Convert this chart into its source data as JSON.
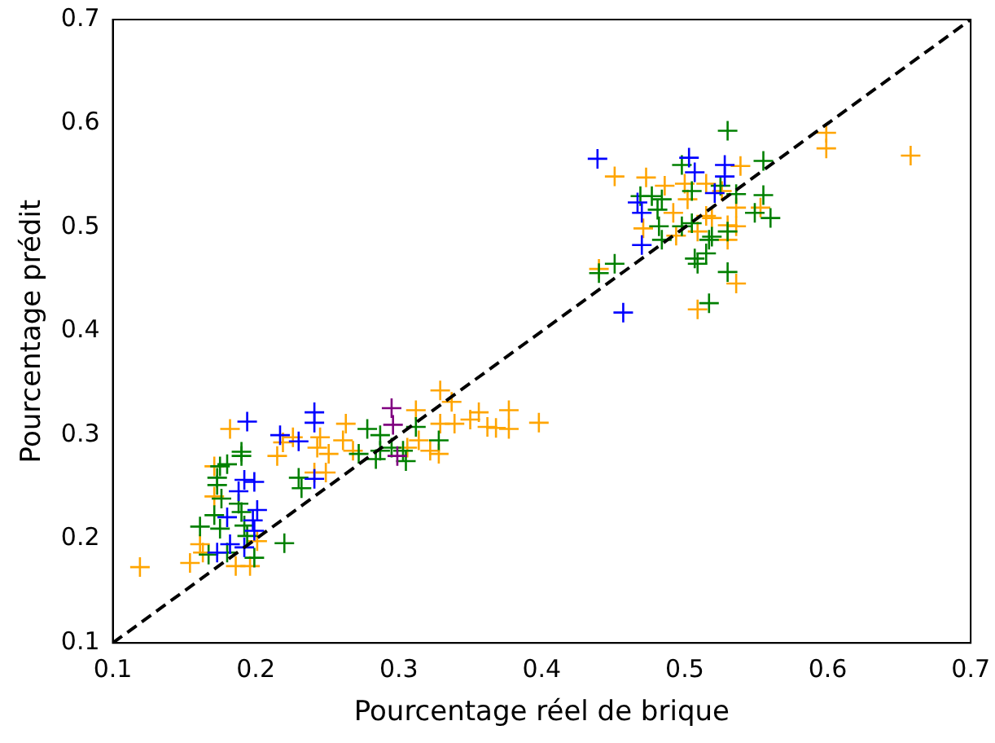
{
  "chart_data": {
    "type": "scatter",
    "xlabel": "Pourcentage réel de brique",
    "ylabel": "Pourcentage prédit",
    "xlim": [
      0.1,
      0.7
    ],
    "ylim": [
      0.1,
      0.7
    ],
    "xticks": [
      0.1,
      0.2,
      0.3,
      0.4,
      0.5,
      0.6,
      0.7
    ],
    "yticks": [
      0.1,
      0.2,
      0.3,
      0.4,
      0.5,
      0.6,
      0.7
    ],
    "grid": false,
    "legend": false,
    "marker": "cross",
    "series": [
      {
        "color": "#ffa500",
        "x": [
          0.119,
          0.154,
          0.161,
          0.171,
          0.171,
          0.182,
          0.196,
          0.186,
          0.215,
          0.219,
          0.226,
          0.245,
          0.243,
          0.251,
          0.241,
          0.249,
          0.263,
          0.261,
          0.268,
          0.329,
          0.337,
          0.312,
          0.314,
          0.306,
          0.322,
          0.329,
          0.339,
          0.35,
          0.356,
          0.362,
          0.368,
          0.377,
          0.377,
          0.398,
          0.328,
          0.201,
          0.163,
          0.44,
          0.451,
          0.473,
          0.486,
          0.5,
          0.515,
          0.539,
          0.599,
          0.599,
          0.658,
          0.471,
          0.494,
          0.509,
          0.519,
          0.53,
          0.536,
          0.536,
          0.553,
          0.53,
          0.536,
          0.509,
          0.502,
          0.492,
          0.526,
          0.515
        ],
        "values": [
          0.173,
          0.177,
          0.195,
          0.27,
          0.241,
          0.306,
          0.174,
          0.174,
          0.28,
          0.293,
          0.298,
          0.298,
          0.288,
          0.282,
          0.264,
          0.264,
          0.311,
          0.295,
          0.285,
          0.343,
          0.332,
          0.324,
          0.295,
          0.288,
          0.285,
          0.311,
          0.311,
          0.315,
          0.322,
          0.308,
          0.307,
          0.324,
          0.306,
          0.312,
          0.282,
          0.198,
          0.187,
          0.46,
          0.549,
          0.548,
          0.54,
          0.542,
          0.542,
          0.559,
          0.591,
          0.576,
          0.569,
          0.499,
          0.492,
          0.496,
          0.509,
          0.502,
          0.501,
          0.519,
          0.519,
          0.488,
          0.446,
          0.421,
          0.527,
          0.514,
          0.535,
          0.511
        ]
      },
      {
        "color": "#008000",
        "x": [
          0.19,
          0.18,
          0.175,
          0.173,
          0.173,
          0.176,
          0.171,
          0.161,
          0.175,
          0.188,
          0.19,
          0.192,
          0.194,
          0.167,
          0.18,
          0.199,
          0.22,
          0.23,
          0.232,
          0.278,
          0.287,
          0.295,
          0.303,
          0.272,
          0.284,
          0.305,
          0.328,
          0.312,
          0.287,
          0.19,
          0.53,
          0.498,
          0.555,
          0.469,
          0.477,
          0.484,
          0.481,
          0.505,
          0.525,
          0.536,
          0.555,
          0.549,
          0.56,
          0.482,
          0.498,
          0.505,
          0.519,
          0.53,
          0.517,
          0.507,
          0.509,
          0.515,
          0.53,
          0.44,
          0.451,
          0.517,
          0.484
        ],
        "values": [
          0.284,
          0.272,
          0.27,
          0.259,
          0.252,
          0.239,
          0.223,
          0.212,
          0.21,
          0.234,
          0.226,
          0.213,
          0.203,
          0.185,
          0.187,
          0.182,
          0.196,
          0.259,
          0.249,
          0.306,
          0.3,
          0.288,
          0.285,
          0.282,
          0.277,
          0.275,
          0.295,
          0.308,
          0.285,
          0.28,
          0.593,
          0.56,
          0.564,
          0.53,
          0.53,
          0.527,
          0.517,
          0.535,
          0.54,
          0.532,
          0.531,
          0.514,
          0.509,
          0.501,
          0.501,
          0.504,
          0.491,
          0.496,
          0.488,
          0.47,
          0.465,
          0.475,
          0.457,
          0.456,
          0.465,
          0.427,
          0.488
        ]
      },
      {
        "color": "#0000ff",
        "x": [
          0.194,
          0.217,
          0.23,
          0.241,
          0.241,
          0.192,
          0.199,
          0.188,
          0.201,
          0.198,
          0.199,
          0.18,
          0.182,
          0.173,
          0.241,
          0.192,
          0.439,
          0.503,
          0.507,
          0.528,
          0.528,
          0.467,
          0.47,
          0.521,
          0.47,
          0.457
        ],
        "values": [
          0.313,
          0.3,
          0.294,
          0.322,
          0.312,
          0.257,
          0.255,
          0.246,
          0.228,
          0.218,
          0.208,
          0.221,
          0.195,
          0.187,
          0.258,
          0.192,
          0.566,
          0.567,
          0.553,
          0.56,
          0.549,
          0.524,
          0.514,
          0.533,
          0.483,
          0.418
        ]
      },
      {
        "color": "#800080",
        "x": [
          0.295,
          0.296,
          0.299
        ],
        "values": [
          0.326,
          0.31,
          0.28
        ]
      },
      {
        "type": "line",
        "color": "#000000",
        "x": [
          0.1,
          0.7
        ],
        "values": [
          0.1,
          0.7
        ],
        "line_style": "dashed",
        "marker": "none"
      }
    ]
  }
}
